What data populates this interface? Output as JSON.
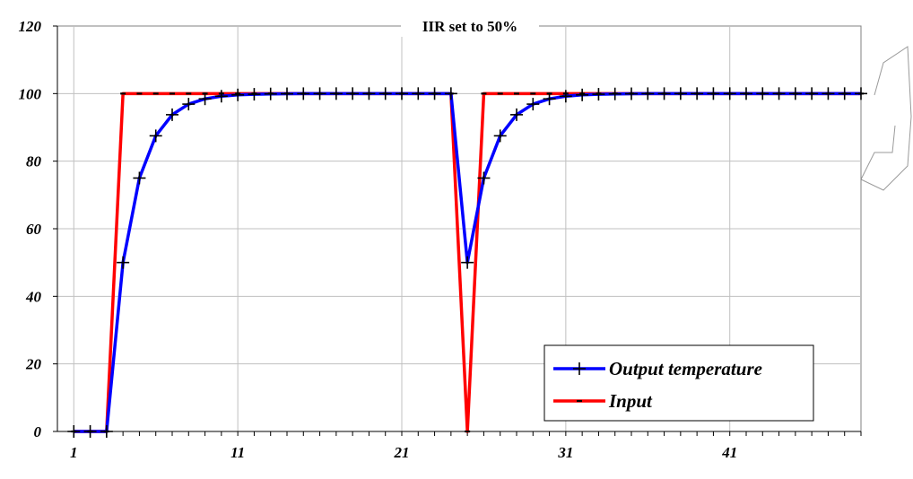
{
  "chart_data": {
    "type": "line",
    "title": "IIR set to 50%",
    "xlabel": "",
    "ylabel": "",
    "xlim": [
      0,
      49
    ],
    "ylim": [
      0,
      120
    ],
    "x_ticks": [
      1,
      11,
      21,
      31,
      41
    ],
    "y_ticks": [
      0,
      20,
      40,
      60,
      80,
      100,
      120
    ],
    "grid": true,
    "legend_position": "bottom-right",
    "x": [
      1,
      2,
      3,
      4,
      5,
      6,
      7,
      8,
      9,
      10,
      11,
      12,
      13,
      14,
      15,
      16,
      17,
      18,
      19,
      20,
      21,
      22,
      23,
      24,
      25,
      26,
      27,
      28,
      29,
      30,
      31,
      32,
      33,
      34,
      35,
      36,
      37,
      38,
      39,
      40,
      41,
      42,
      43,
      44,
      45,
      46,
      47,
      48,
      49
    ],
    "series": [
      {
        "name": "Output temperature",
        "color": "#0000ff",
        "marker": "plus",
        "values": [
          0,
          0,
          0,
          50,
          75,
          87.5,
          93.75,
          96.88,
          98.44,
          99.22,
          99.61,
          99.8,
          99.9,
          99.95,
          99.98,
          99.99,
          100,
          100,
          100,
          100,
          100,
          100,
          100,
          100,
          50,
          75,
          87.5,
          93.75,
          96.88,
          98.44,
          99.22,
          99.61,
          99.8,
          99.9,
          99.95,
          99.98,
          99.99,
          100,
          100,
          100,
          100,
          100,
          100,
          100,
          100,
          100,
          100,
          100,
          100
        ]
      },
      {
        "name": "Input",
        "color": "#ff0000",
        "marker": "dash",
        "values": [
          0,
          0,
          0,
          100,
          100,
          100,
          100,
          100,
          100,
          100,
          100,
          100,
          100,
          100,
          100,
          100,
          100,
          100,
          100,
          100,
          100,
          100,
          100,
          100,
          0,
          100,
          100,
          100,
          100,
          100,
          100,
          100,
          100,
          100,
          100,
          100,
          100,
          100,
          100,
          100,
          100,
          100,
          100,
          100,
          100,
          100,
          100,
          100,
          100
        ]
      }
    ]
  }
}
